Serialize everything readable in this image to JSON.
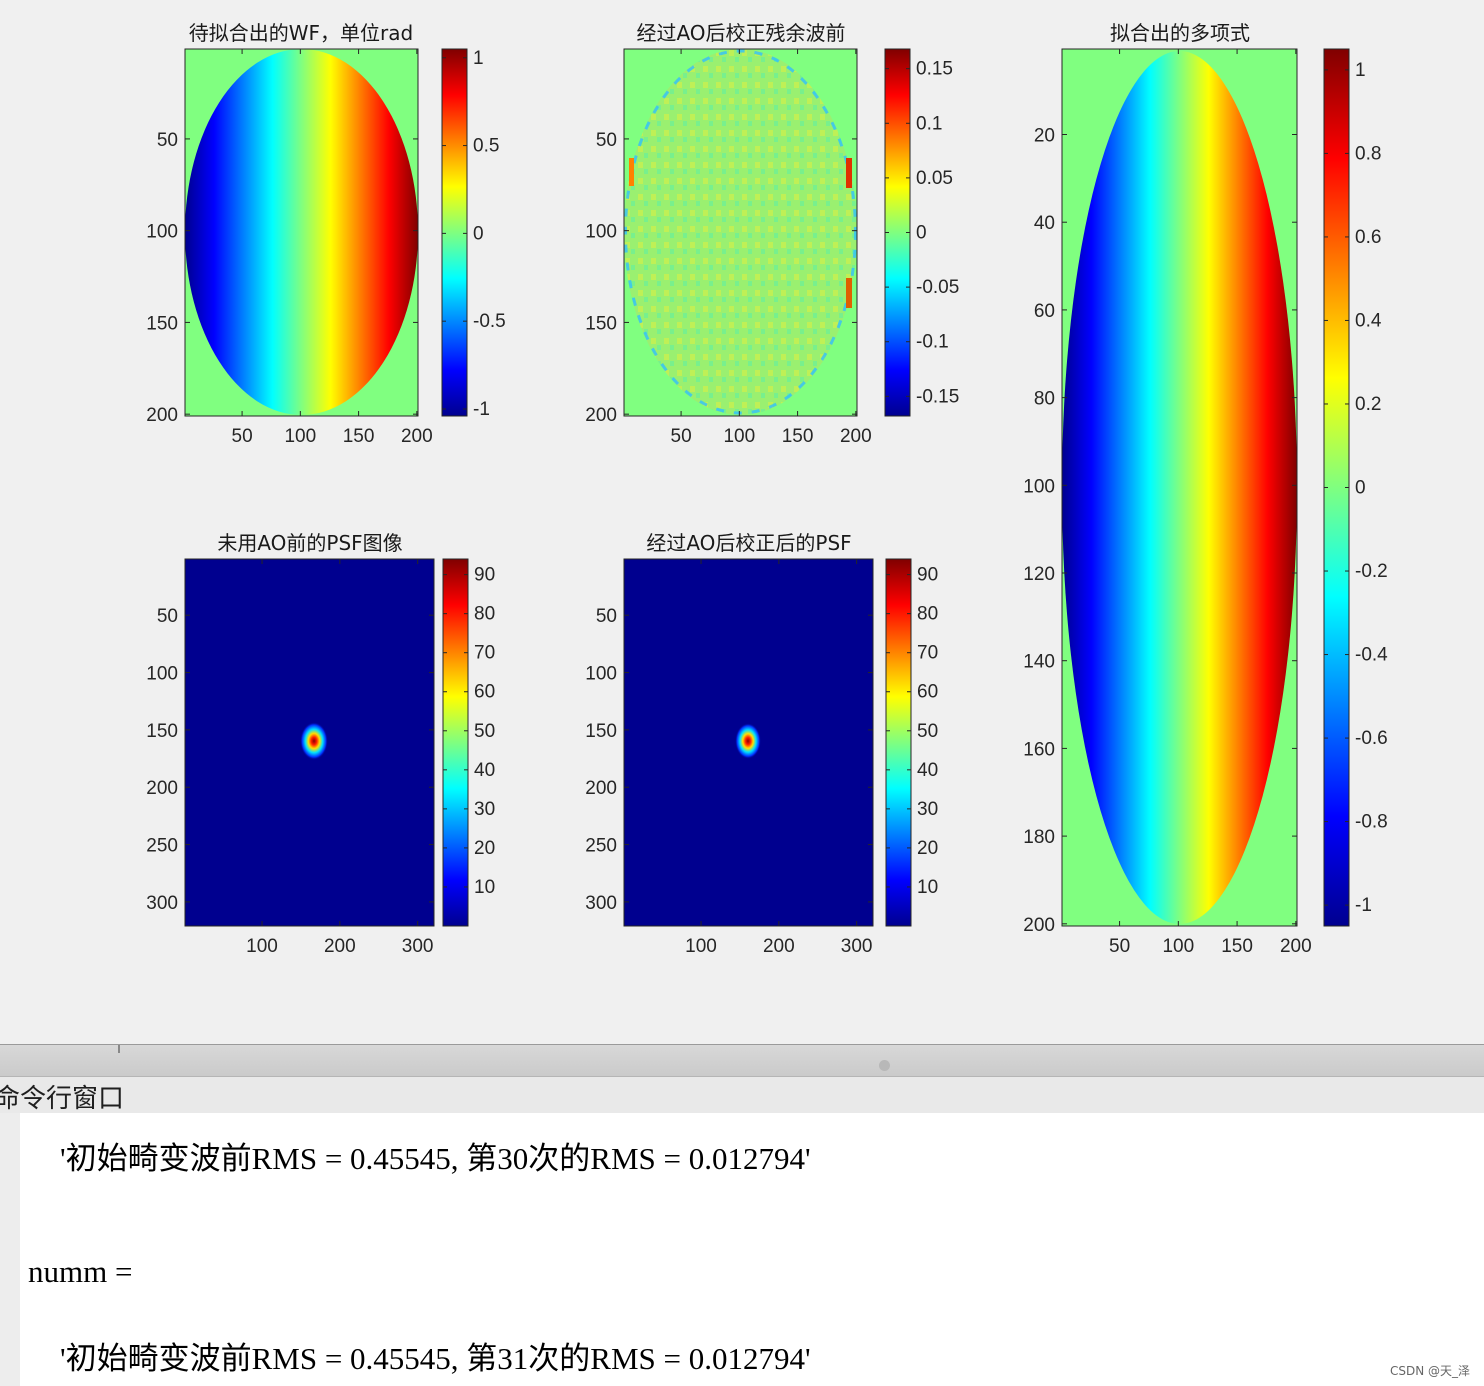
{
  "figure": {
    "panels": [
      {
        "title": "待拟合出的WF，单位rad",
        "yticks": [
          "50",
          "100",
          "150",
          "200"
        ],
        "xticks": [
          "50",
          "100",
          "150",
          "200"
        ],
        "cticks": [
          "1",
          "0.5",
          "0",
          "-0.5",
          "-1"
        ]
      },
      {
        "title": "经过AO后校正残余波前",
        "yticks": [
          "50",
          "100",
          "150",
          "200"
        ],
        "xticks": [
          "50",
          "100",
          "150",
          "200"
        ],
        "cticks": [
          "0.15",
          "0.1",
          "0.05",
          "0",
          "-0.05",
          "-0.1",
          "-0.15"
        ]
      },
      {
        "title": "拟合出的多项式",
        "yticks": [
          "20",
          "40",
          "60",
          "80",
          "100",
          "120",
          "140",
          "160",
          "180",
          "200"
        ],
        "xticks": [
          "50",
          "100",
          "150",
          "200"
        ],
        "cticks": [
          "1",
          "0.8",
          "0.6",
          "0.4",
          "0.2",
          "0",
          "-0.2",
          "-0.4",
          "-0.6",
          "-0.8",
          "-1"
        ]
      },
      {
        "title": "未用AO前的PSF图像",
        "yticks": [
          "50",
          "100",
          "150",
          "200",
          "250",
          "300"
        ],
        "xticks": [
          "100",
          "200",
          "300"
        ],
        "cticks": [
          "90",
          "80",
          "70",
          "60",
          "50",
          "40",
          "30",
          "20",
          "10"
        ]
      },
      {
        "title": "经过AO后校正后的PSF",
        "yticks": [
          "50",
          "100",
          "150",
          "200",
          "250",
          "300"
        ],
        "xticks": [
          "100",
          "200",
          "300"
        ],
        "cticks": [
          "90",
          "80",
          "70",
          "60",
          "50",
          "40",
          "30",
          "20",
          "10"
        ]
      }
    ],
    "colormap": "jet",
    "background_fill": "#80ff80"
  },
  "command_window": {
    "title": "命令行窗口",
    "lines": [
      "'初始畸变波前RMS = 0.45545, 第30次的RMS = 0.012794'",
      "numm =",
      "'初始畸变波前RMS = 0.45545, 第31次的RMS = 0.012794'"
    ]
  },
  "watermark": "CSDN @天_泽"
}
